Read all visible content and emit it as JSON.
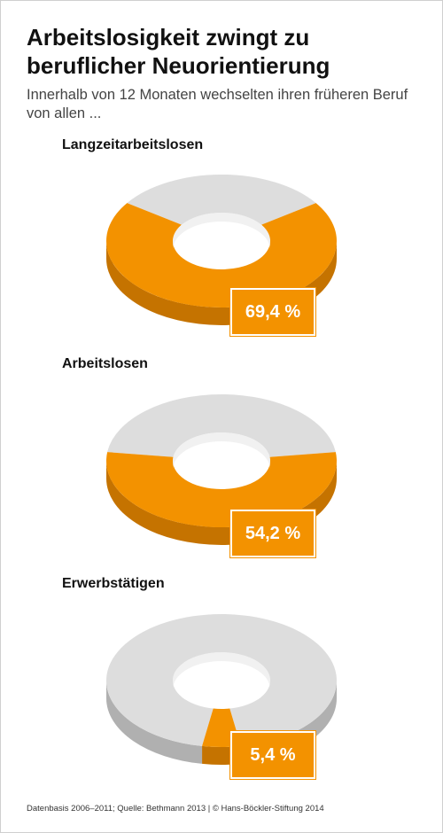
{
  "title": "Arbeitslosigkeit zwingt zu beruflicher Neuorientierung",
  "subtitle": "Innerhalb von 12 Monaten wechselten ihren früheren Beruf von allen ...",
  "source": "Datenbasis 2006–2011; Quelle: Bethmann 2013 | © Hans-Böckler-Stiftung 2014",
  "colors": {
    "highlight": "#f39200",
    "rest": "#dddddd"
  },
  "chart_data": [
    {
      "type": "pie",
      "title": "Langzeitarbeitslosen",
      "value": 69.4,
      "label": "69,4 %",
      "unit": "%"
    },
    {
      "type": "pie",
      "title": "Arbeitslosen",
      "value": 54.2,
      "label": "54,2 %",
      "unit": "%"
    },
    {
      "type": "pie",
      "title": "Erwerbstätigen",
      "value": 5.4,
      "label": "5,4 %",
      "unit": "%"
    }
  ]
}
